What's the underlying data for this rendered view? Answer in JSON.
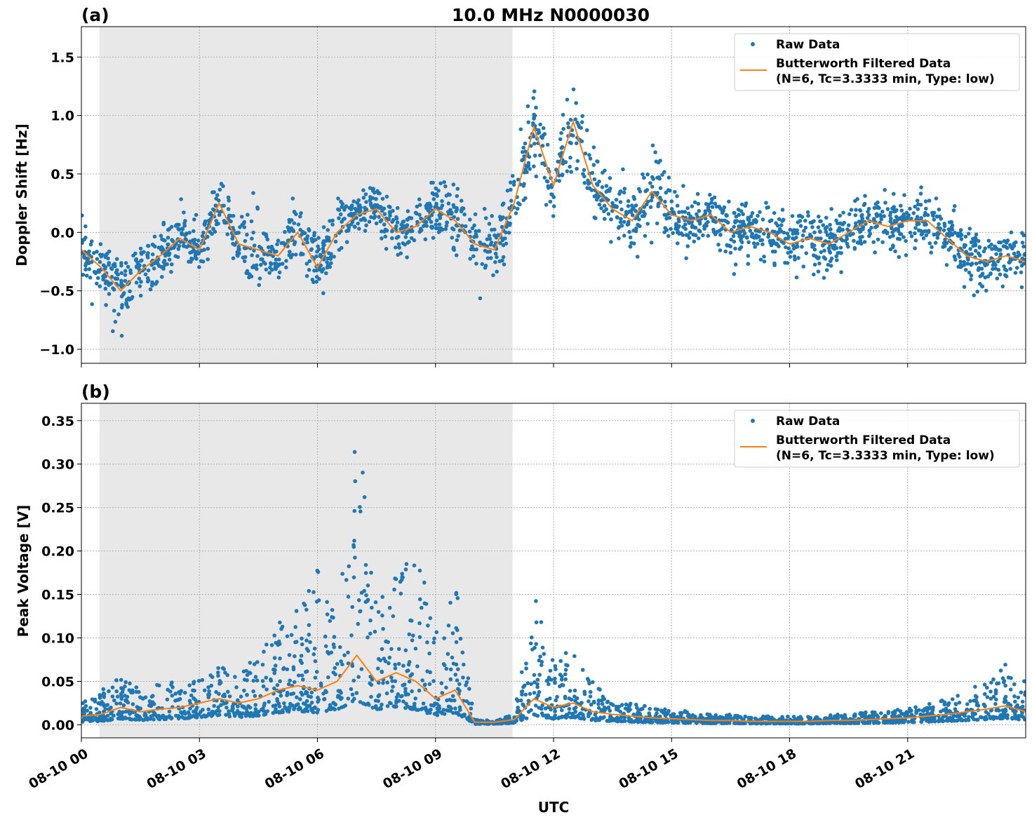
{
  "chart_data": [
    {
      "type": "scatter",
      "panel_label": "(a)",
      "title": "10.0 MHz N0000030",
      "xlabel": "",
      "ylabel": "Doppler Shift [Hz]",
      "xlim_hours": [
        0,
        24
      ],
      "ylim": [
        -1.12,
        1.76
      ],
      "yticks": [
        -1.0,
        -0.5,
        0.0,
        0.5,
        1.0,
        1.5
      ],
      "ytick_labels": [
        "−1.0",
        "−0.5",
        "0.0",
        "0.5",
        "1.0",
        "1.5"
      ],
      "grid": true,
      "legend_placement": "top-right",
      "shaded_interval_hours": [
        0.46,
        10.96
      ],
      "colors": {
        "raw": "#1f77b4",
        "filtered": "#ff7f0e",
        "shade": "#e8e8e8"
      },
      "legend": [
        "Raw Data",
        "Butterworth Filtered Data",
        "(N=6, Tc=3.3333 min, Type: low)"
      ],
      "x_hours": [
        0,
        0.5,
        1,
        1.5,
        2,
        2.5,
        3,
        3.5,
        4,
        4.5,
        5,
        5.5,
        6,
        6.5,
        7,
        7.5,
        8,
        8.5,
        9,
        9.5,
        10,
        10.5,
        11,
        11.5,
        12,
        12.5,
        13,
        13.5,
        14,
        14.5,
        15,
        15.5,
        16,
        16.5,
        17,
        17.5,
        18,
        18.5,
        19,
        19.5,
        20,
        20.5,
        21,
        21.5,
        22,
        22.5,
        23,
        23.5,
        24
      ],
      "series": [
        {
          "name": "Butterworth Filtered Data",
          "values": [
            -0.15,
            -0.3,
            -0.5,
            -0.33,
            -0.2,
            -0.05,
            -0.15,
            0.25,
            -0.1,
            -0.15,
            -0.2,
            0.0,
            -0.3,
            0.0,
            0.15,
            0.2,
            0.0,
            0.05,
            0.2,
            0.1,
            -0.1,
            -0.15,
            0.25,
            0.9,
            0.4,
            0.95,
            0.4,
            0.2,
            0.1,
            0.35,
            0.15,
            0.1,
            0.15,
            0.0,
            0.05,
            0.0,
            -0.1,
            -0.05,
            -0.1,
            0.0,
            0.1,
            0.05,
            0.1,
            0.1,
            -0.05,
            -0.2,
            -0.25,
            -0.2,
            -0.25
          ]
        },
        {
          "name": "Raw Data",
          "spread": [
            0.22,
            0.22,
            0.28,
            0.25,
            0.22,
            0.22,
            0.25,
            0.25,
            0.3,
            0.3,
            0.28,
            0.25,
            0.25,
            0.25,
            0.25,
            0.2,
            0.2,
            0.2,
            0.22,
            0.28,
            0.3,
            0.3,
            0.3,
            0.35,
            0.25,
            0.3,
            0.28,
            0.25,
            0.25,
            0.3,
            0.25,
            0.22,
            0.22,
            0.22,
            0.22,
            0.22,
            0.25,
            0.25,
            0.25,
            0.22,
            0.22,
            0.22,
            0.22,
            0.22,
            0.22,
            0.25,
            0.25,
            0.22,
            0.22
          ]
        }
      ]
    },
    {
      "type": "scatter",
      "panel_label": "(b)",
      "xlabel": "UTC",
      "ylabel": "Peak Voltage [V]",
      "xlim_hours": [
        0,
        24
      ],
      "ylim": [
        -0.015,
        0.37
      ],
      "yticks": [
        0.0,
        0.05,
        0.1,
        0.15,
        0.2,
        0.25,
        0.3,
        0.35
      ],
      "ytick_labels": [
        "0.00",
        "0.05",
        "0.10",
        "0.15",
        "0.20",
        "0.25",
        "0.30",
        "0.35"
      ],
      "xticks_hours": [
        0,
        3,
        6,
        9,
        12,
        15,
        18,
        21
      ],
      "xtick_labels": [
        "08-10 00",
        "08-10 03",
        "08-10 06",
        "08-10 09",
        "08-10 12",
        "08-10 15",
        "08-10 18",
        "08-10 21"
      ],
      "grid": true,
      "legend_placement": "top-right",
      "shaded_interval_hours": [
        0.46,
        10.96
      ],
      "colors": {
        "raw": "#1f77b4",
        "filtered": "#ff7f0e",
        "shade": "#e8e8e8"
      },
      "legend": [
        "Raw Data",
        "Butterworth Filtered Data",
        "(N=6, Tc=3.3333 min, Type: low)"
      ],
      "x_hours": [
        0,
        0.5,
        1,
        1.5,
        2,
        2.5,
        3,
        3.5,
        4,
        4.5,
        5,
        5.5,
        6,
        6.5,
        7,
        7.5,
        8,
        8.5,
        9,
        9.5,
        10,
        10.5,
        11,
        11.5,
        12,
        12.5,
        13,
        13.5,
        14,
        14.5,
        15,
        15.5,
        16,
        16.5,
        17,
        17.5,
        18,
        18.5,
        19,
        19.5,
        20,
        20.5,
        21,
        21.5,
        22,
        22.5,
        23,
        23.5,
        24
      ],
      "series": [
        {
          "name": "Butterworth Filtered Data",
          "values": [
            0.01,
            0.012,
            0.02,
            0.015,
            0.018,
            0.02,
            0.025,
            0.03,
            0.025,
            0.03,
            0.04,
            0.045,
            0.04,
            0.05,
            0.08,
            0.05,
            0.06,
            0.05,
            0.03,
            0.04,
            0.003,
            0.003,
            0.006,
            0.03,
            0.02,
            0.025,
            0.015,
            0.012,
            0.01,
            0.008,
            0.007,
            0.006,
            0.005,
            0.005,
            0.004,
            0.004,
            0.004,
            0.004,
            0.005,
            0.005,
            0.006,
            0.007,
            0.008,
            0.01,
            0.012,
            0.015,
            0.018,
            0.022,
            0.015
          ]
        },
        {
          "name": "Raw Data",
          "upper": [
            0.025,
            0.04,
            0.06,
            0.04,
            0.05,
            0.05,
            0.06,
            0.07,
            0.06,
            0.08,
            0.12,
            0.14,
            0.18,
            0.12,
            0.35,
            0.15,
            0.18,
            0.22,
            0.12,
            0.17,
            0.006,
            0.005,
            0.012,
            0.15,
            0.08,
            0.09,
            0.05,
            0.03,
            0.025,
            0.02,
            0.02,
            0.015,
            0.012,
            0.012,
            0.01,
            0.01,
            0.01,
            0.01,
            0.012,
            0.012,
            0.015,
            0.015,
            0.02,
            0.025,
            0.03,
            0.04,
            0.05,
            0.07,
            0.05
          ]
        }
      ]
    }
  ]
}
